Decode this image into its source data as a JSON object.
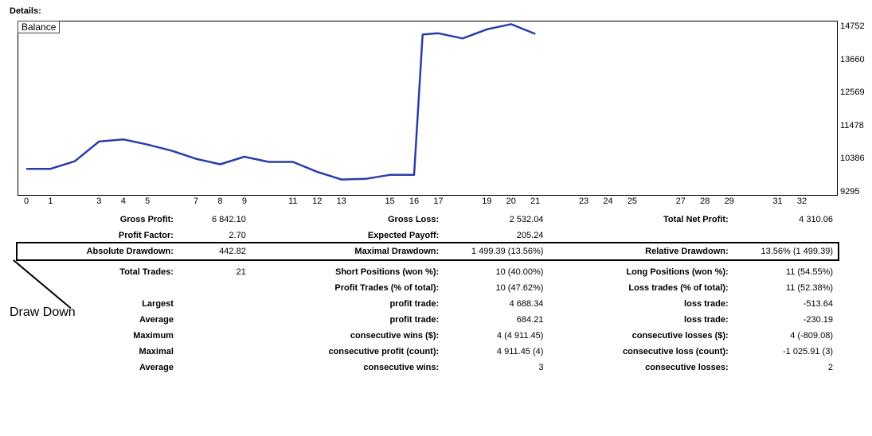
{
  "header": "Details:",
  "chart": {
    "type": "line",
    "title": "Balance",
    "line_color": "#2b3da8",
    "line_width": 2.5,
    "background_color": "#ffffff",
    "border_color": "#000000",
    "xlim": [
      0,
      32
    ],
    "ylim": [
      9295,
      14752
    ],
    "x_ticks": [
      0,
      1,
      3,
      4,
      5,
      7,
      8,
      9,
      11,
      12,
      13,
      15,
      16,
      17,
      19,
      20,
      21,
      23,
      24,
      25,
      27,
      28,
      29,
      31,
      32
    ],
    "y_ticks": [
      14752,
      13660,
      12569,
      11478,
      10386,
      9295
    ],
    "y_tick_fontsize": 11,
    "x_tick_fontsize": 11,
    "data_x": [
      0,
      1,
      2,
      3,
      4,
      5,
      6,
      7,
      8,
      9,
      10,
      11,
      12,
      13,
      14,
      15,
      16,
      16.35,
      17,
      18,
      19,
      20,
      21
    ],
    "data_y": [
      10050,
      10050,
      10300,
      10950,
      11020,
      10850,
      10650,
      10380,
      10200,
      10450,
      10280,
      10280,
      9950,
      9700,
      9720,
      9850,
      9850,
      14480,
      14520,
      14350,
      14650,
      14820,
      14500
    ]
  },
  "annotation": {
    "label": "Draw Down"
  },
  "stats": {
    "row1": {
      "gross_profit_l": "Gross Profit:",
      "gross_profit_v": "6 842.10",
      "gross_loss_l": "Gross Loss:",
      "gross_loss_v": "2 532.04",
      "total_net_l": "Total Net Profit:",
      "total_net_v": "4 310.06"
    },
    "row2": {
      "pf_l": "Profit Factor:",
      "pf_v": "2.70",
      "ep_l": "Expected Payoff:",
      "ep_v": "205.24",
      "blank_l": "",
      "blank_v": ""
    },
    "row3": {
      "ad_l": "Absolute Drawdown:",
      "ad_v": "442.82",
      "md_l": "Maximal Drawdown:",
      "md_v": "1 499.39 (13.56%)",
      "rd_l": "Relative Drawdown:",
      "rd_v": "13.56% (1 499.39)"
    },
    "row4": {
      "tt_l": "Total Trades:",
      "tt_v": "21",
      "sp_l": "Short Positions (won %):",
      "sp_v": "10 (40.00%)",
      "lp_l": "Long Positions (won %):",
      "lp_v": "11 (54.55%)"
    },
    "row5": {
      "a_l": "",
      "a_v": "",
      "pt_l": "Profit Trades (% of total):",
      "pt_v": "10 (47.62%)",
      "lt_l": "Loss trades (% of total):",
      "lt_v": "11 (52.38%)"
    },
    "row6": {
      "lg_l": "Largest",
      "lg_v": "",
      "pt_l": "profit trade:",
      "pt_v": "4 688.34",
      "lt_l": "loss trade:",
      "lt_v": "-513.64"
    },
    "row7": {
      "av_l": "Average",
      "av_v": "",
      "pt_l": "profit trade:",
      "pt_v": "684.21",
      "lt_l": "loss trade:",
      "lt_v": "-230.19"
    },
    "row8": {
      "mx_l": "Maximum",
      "mx_v": "",
      "cw_l": "consecutive wins ($):",
      "cw_v": "4 (4 911.45)",
      "cl_l": "consecutive losses ($):",
      "cl_v": "4 (-809.08)"
    },
    "row9": {
      "ml_l": "Maximal",
      "ml_v": "",
      "cp_l": "consecutive profit (count):",
      "cp_v": "4 911.45 (4)",
      "cl_l": "consecutive loss (count):",
      "cl_v": "-1 025.91 (3)"
    },
    "row10": {
      "av_l": "Average",
      "av_v": "",
      "cw_l": "consecutive wins:",
      "cw_v": "3",
      "cl_l": "consecutive losses:",
      "cl_v": "2"
    }
  }
}
